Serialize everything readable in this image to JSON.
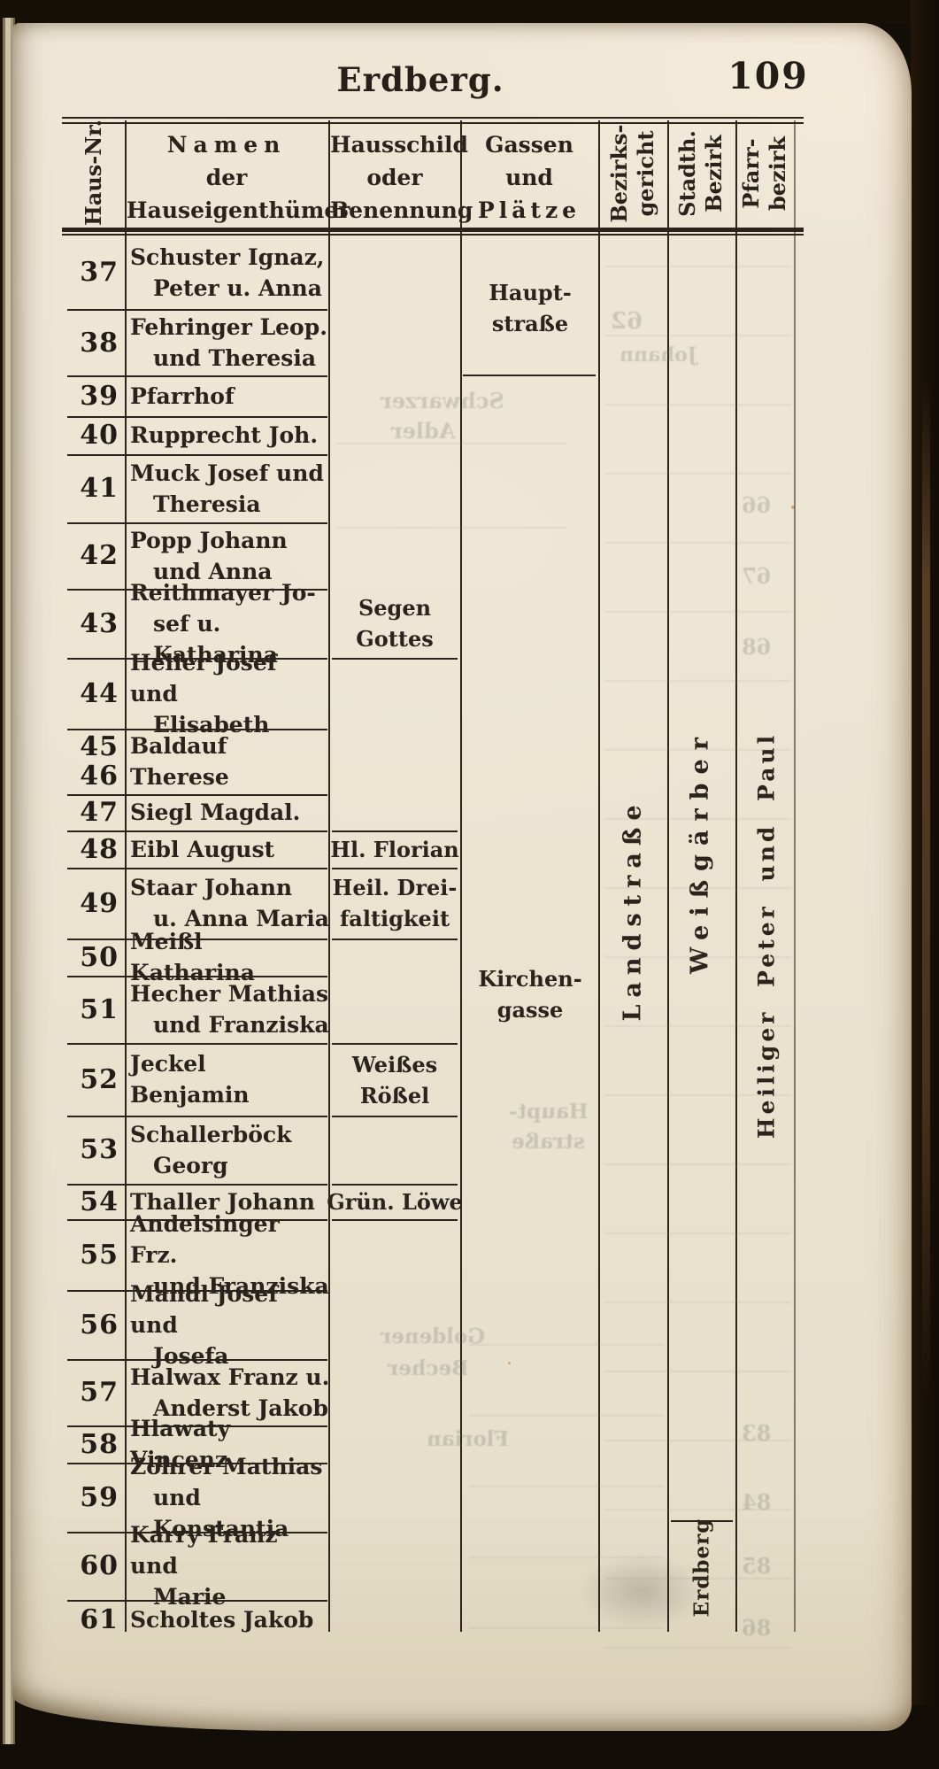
{
  "page": {
    "title": "Erdberg.",
    "page_number": "109"
  },
  "table": {
    "headers": {
      "haus_nr": "Haus-Nr.",
      "namen": [
        "Namen",
        "der",
        "Hauseigenthümer"
      ],
      "hausschild": [
        "Hausschild",
        "oder",
        "Benennung"
      ],
      "gassen": [
        "Gassen",
        "und",
        "Plätze"
      ],
      "bezirksgericht": [
        "Bezirks-",
        "gericht"
      ],
      "stadth_bezirk": [
        "Stadth.",
        "Bezirk"
      ],
      "pfarrbezirk": [
        "Pfarr-",
        "bezirk"
      ]
    },
    "rows": [
      {
        "nr": [
          "37"
        ],
        "name": [
          "Schuster Ignaz,",
          "Peter u. Anna"
        ]
      },
      {
        "nr": [
          "38"
        ],
        "name": [
          "Fehringer Leop.",
          "und Theresia"
        ]
      },
      {
        "nr": [
          "39"
        ],
        "name": [
          "Pfarrhof"
        ]
      },
      {
        "nr": [
          "40"
        ],
        "name": [
          "Rupprecht Joh."
        ]
      },
      {
        "nr": [
          "41"
        ],
        "name": [
          "Muck Josef und",
          "Theresia"
        ]
      },
      {
        "nr": [
          "42"
        ],
        "name": [
          "Popp Johann",
          "und Anna"
        ]
      },
      {
        "nr": [
          "43"
        ],
        "name": [
          "Reithmayer Jo-",
          "sef u. Katharina"
        ]
      },
      {
        "nr": [
          "44"
        ],
        "name": [
          "Heller Josef und",
          "Elisabeth"
        ]
      },
      {
        "nr": [
          "45",
          "46"
        ],
        "name": [
          "Baldauf Therese"
        ]
      },
      {
        "nr": [
          "47"
        ],
        "name": [
          "Siegl Magdal."
        ]
      },
      {
        "nr": [
          "48"
        ],
        "name": [
          "Eibl August"
        ]
      },
      {
        "nr": [
          "49"
        ],
        "name": [
          "Staar Johann",
          "u. Anna Maria"
        ]
      },
      {
        "nr": [
          "50"
        ],
        "name": [
          "Meißl Katharina"
        ]
      },
      {
        "nr": [
          "51"
        ],
        "name": [
          "Hecher Mathias",
          "und Franziska"
        ]
      },
      {
        "nr": [
          "52"
        ],
        "name": [
          "Jeckel Benjamin"
        ]
      },
      {
        "nr": [
          "53"
        ],
        "name": [
          "Schallerböck",
          "Georg"
        ]
      },
      {
        "nr": [
          "54"
        ],
        "name": [
          "Thaller Johann"
        ]
      },
      {
        "nr": [
          "55"
        ],
        "name": [
          "Andelsinger Frz.",
          "und Franziska"
        ]
      },
      {
        "nr": [
          "56"
        ],
        "name": [
          "Mandl Josef und",
          "Josefa"
        ]
      },
      {
        "nr": [
          "57"
        ],
        "name": [
          "Halwax Franz u.",
          "Anderst Jakob"
        ]
      },
      {
        "nr": [
          "58"
        ],
        "name": [
          "Hlawaty Vincenz"
        ]
      },
      {
        "nr": [
          "59"
        ],
        "name": [
          "Zöhrer Mathias",
          "und Konstantia"
        ]
      },
      {
        "nr": [
          "60"
        ],
        "name": [
          "Karry Franz und",
          "Marie"
        ]
      },
      {
        "nr": [
          "61"
        ],
        "name": [
          "Scholtes Jakob"
        ]
      }
    ],
    "hausschild_entries": {
      "segen": [
        "Segen",
        "Gottes"
      ],
      "florian": [
        "Hl. Florian"
      ],
      "dreifaltigkeit": [
        "Heil. Drei-",
        "faltigkeit"
      ],
      "roessel": [
        "Weißes",
        "Rößel"
      ],
      "loewe": [
        "Grün. Löwe"
      ]
    },
    "gassen_entries": {
      "hauptstrasse": [
        "Haupt-",
        "straße"
      ],
      "kirchengasse": [
        "Kirchen-",
        "gasse"
      ]
    },
    "rotated_values": {
      "bezirksgericht": "Landstraße",
      "stadth_bezirk": "Weißgärber",
      "pfarrbezirk": "Heiliger Peter und Paul",
      "stadth_bezirk_bottom": "Erdberg"
    }
  },
  "ghosts": [
    "Schwarzer",
    "Adler",
    "Johann",
    "62",
    "66",
    "67",
    "68",
    "Haupt-",
    "straße",
    "Goldener",
    "Becher",
    "Florian",
    "83",
    "84",
    "85",
    "86"
  ]
}
